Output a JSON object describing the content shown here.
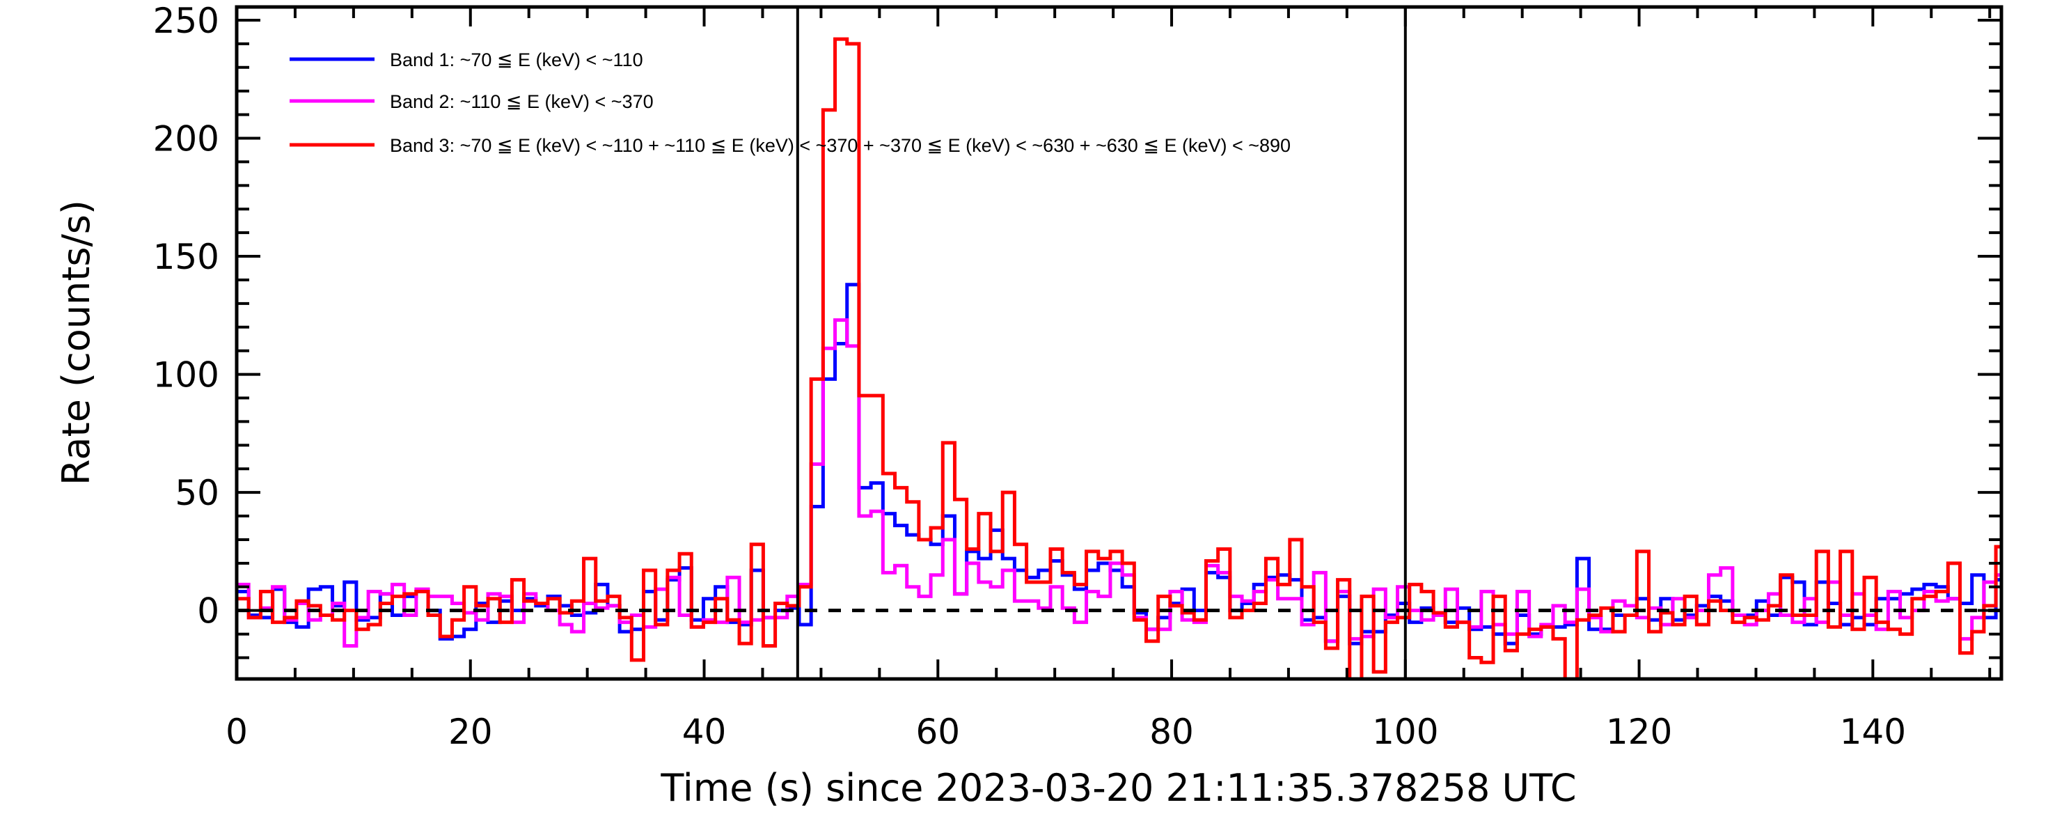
{
  "chart_data": {
    "type": "line",
    "style": "step",
    "title": "",
    "xlabel": "Time (s) since 2023-03-20 21:11:35.378258 UTC",
    "ylabel": "Rate (counts/s)",
    "xlim": [
      0,
      151
    ],
    "ylim": [
      -29,
      255.6
    ],
    "x_ticks": [
      0,
      20,
      40,
      60,
      80,
      100,
      120,
      140
    ],
    "y_ticks": [
      0,
      50,
      100,
      150,
      200,
      250
    ],
    "bin_width": 1.024,
    "vertical_markers": [
      48,
      100
    ],
    "reference_line": 0,
    "legend_position": "top-left",
    "series": [
      {
        "name": "Band 1: ~70 ≦ E (keV) < ~110",
        "color": "#0000ff",
        "values": [
          8,
          -2,
          -3,
          9,
          -5,
          -7,
          9,
          10,
          2,
          12,
          -4,
          -3,
          7,
          -2,
          6,
          8,
          0,
          -12,
          -11,
          -8,
          3,
          -5,
          4,
          0,
          5,
          2,
          6,
          2,
          -2,
          -1,
          11,
          2,
          -9,
          -8,
          8,
          -4,
          13,
          18,
          -4,
          5,
          10,
          -5,
          -6,
          17,
          -3,
          0,
          1,
          -6,
          44,
          98,
          113,
          138,
          52,
          54,
          41,
          36,
          32,
          30,
          28,
          40,
          7,
          25,
          22,
          34,
          22,
          17,
          14,
          17,
          21,
          15,
          9,
          17,
          20,
          17,
          10,
          -1,
          -8,
          -3,
          3,
          9,
          0,
          16,
          14,
          0,
          3,
          11,
          14,
          15,
          13,
          -4,
          -3,
          -13,
          6,
          -14,
          -9,
          -9,
          -2,
          3,
          -5,
          1,
          -2,
          -5,
          1,
          -8,
          -7,
          -10,
          -14,
          -2,
          -10,
          -7,
          -7,
          -6,
          22,
          -8,
          -8,
          -2,
          -2,
          5,
          -4,
          5,
          -4,
          -2,
          2,
          6,
          4,
          -2,
          -2,
          4,
          -2,
          14,
          12,
          -6,
          12,
          3,
          -6,
          -3,
          -6,
          5,
          5,
          7,
          9,
          11,
          10,
          5,
          3,
          15,
          -3,
          13
        ]
      },
      {
        "name": "Band 2: ~110 ≦ E (keV) < ~370",
        "color": "#ff00ff",
        "values": [
          11,
          -3,
          1,
          10,
          -4,
          3,
          -4,
          -2,
          3,
          -15,
          -3,
          8,
          7,
          11,
          -2,
          9,
          6,
          6,
          3,
          -1,
          -4,
          7,
          6,
          -5,
          7,
          3,
          0,
          -6,
          -9,
          3,
          1,
          2,
          -5,
          -2,
          -7,
          9,
          14,
          -2,
          -7,
          -4,
          -5,
          14,
          -5,
          -4,
          -3,
          -3,
          6,
          11,
          62,
          111,
          123,
          112,
          40,
          42,
          16,
          19,
          10,
          6,
          15,
          30,
          7,
          20,
          12,
          10,
          17,
          4,
          4,
          1,
          10,
          1,
          -5,
          8,
          6,
          20,
          15,
          -3,
          -8,
          -8,
          8,
          -4,
          -5,
          19,
          16,
          6,
          4,
          8,
          13,
          5,
          5,
          -6,
          16,
          -13,
          8,
          -12,
          -11,
          9,
          -3,
          10,
          0,
          -4,
          -2,
          9,
          -5,
          -7,
          8,
          -6,
          -10,
          8,
          -11,
          -6,
          2,
          -5,
          9,
          -3,
          -9,
          4,
          2,
          -3,
          1,
          -6,
          5,
          -3,
          0,
          15,
          18,
          -2,
          -6,
          0,
          7,
          -2,
          -5,
          5,
          -5,
          12,
          -2,
          7,
          -2,
          -8,
          8,
          -3,
          0,
          8,
          4,
          5,
          -12,
          -3,
          12,
          15
        ]
      },
      {
        "name": "Band 3: ~70 ≦ E (keV) < ~110 + ~110 ≦ E (keV) < ~370 + ~370 ≦ E (keV) < ~630 + ~630 ≦ E (keV) < ~890",
        "color": "#ff0000",
        "values": [
          5,
          -3,
          8,
          -5,
          -3,
          4,
          2,
          -2,
          -4,
          0,
          -8,
          -6,
          3,
          6,
          7,
          8,
          -2,
          -11,
          -4,
          10,
          2,
          5,
          -5,
          13,
          4,
          3,
          5,
          -1,
          4,
          22,
          4,
          6,
          -3,
          -21,
          17,
          -6,
          17,
          24,
          -7,
          -5,
          5,
          -4,
          -14,
          28,
          -15,
          3,
          2,
          10,
          98,
          212,
          242,
          240,
          91,
          91,
          58,
          52,
          46,
          30,
          35,
          71,
          47,
          26,
          41,
          25,
          50,
          28,
          12,
          12,
          26,
          16,
          11,
          25,
          22,
          25,
          20,
          -4,
          -13,
          6,
          2,
          -1,
          -4,
          21,
          26,
          -3,
          0,
          3,
          22,
          11,
          30,
          10,
          -5,
          -16,
          13,
          -29,
          6,
          -26,
          -5,
          -3,
          11,
          8,
          -1,
          -7,
          -5,
          -20,
          -22,
          6,
          -17,
          -10,
          -8,
          -7,
          -12,
          -29,
          -4,
          -2,
          1,
          -9,
          -2,
          25,
          -9,
          -1,
          -6,
          6,
          -6,
          4,
          0,
          -5,
          -3,
          -4,
          2,
          15,
          -2,
          -2,
          25,
          -7,
          25,
          -8,
          14,
          -5,
          -8,
          -10,
          5,
          6,
          8,
          20,
          -18,
          -9,
          2,
          27
        ]
      }
    ]
  }
}
